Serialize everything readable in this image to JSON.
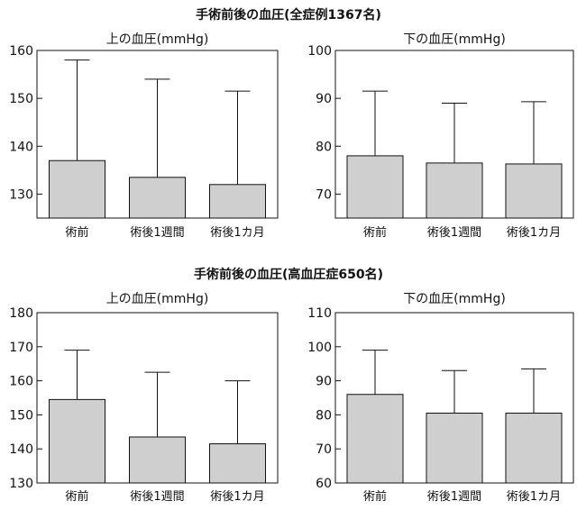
{
  "sections": [
    {
      "title": "手術前後の血圧(全症例1367名)"
    },
    {
      "title": "手術前後の血圧(高血圧症650名)"
    }
  ],
  "chart_data": [
    {
      "type": "bar",
      "title": "上の血圧(mmHg)",
      "categories": [
        "術前",
        "術後1週間",
        "術後1カ月"
      ],
      "values": [
        137,
        133.5,
        132
      ],
      "error_upper": [
        158,
        154,
        151.5
      ],
      "ylim": [
        125,
        160
      ],
      "yticks": [
        130,
        140,
        150,
        160
      ],
      "colors": {
        "bar": "#cfcfcf",
        "stroke": "#111111"
      }
    },
    {
      "type": "bar",
      "title": "下の血圧(mmHg)",
      "categories": [
        "術前",
        "術後1週間",
        "術後1カ月"
      ],
      "values": [
        78,
        76.5,
        76.3
      ],
      "error_upper": [
        91.5,
        89,
        89.3
      ],
      "ylim": [
        65,
        100
      ],
      "yticks": [
        70,
        80,
        90,
        100
      ],
      "colors": {
        "bar": "#cfcfcf",
        "stroke": "#111111"
      }
    },
    {
      "type": "bar",
      "title": "上の血圧(mmHg)",
      "categories": [
        "術前",
        "術後1週間",
        "術後1カ月"
      ],
      "values": [
        154.5,
        143.5,
        141.5
      ],
      "error_upper": [
        169,
        162.5,
        160
      ],
      "ylim": [
        130,
        180
      ],
      "yticks": [
        130,
        140,
        150,
        160,
        170,
        180
      ],
      "colors": {
        "bar": "#cfcfcf",
        "stroke": "#111111"
      }
    },
    {
      "type": "bar",
      "title": "下の血圧(mmHg)",
      "categories": [
        "術前",
        "術後1週間",
        "術後1カ月"
      ],
      "values": [
        86,
        80.5,
        80.5
      ],
      "error_upper": [
        99,
        93,
        93.5
      ],
      "ylim": [
        60,
        110
      ],
      "yticks": [
        60,
        70,
        80,
        90,
        100,
        110
      ],
      "colors": {
        "bar": "#cfcfcf",
        "stroke": "#111111"
      }
    }
  ]
}
